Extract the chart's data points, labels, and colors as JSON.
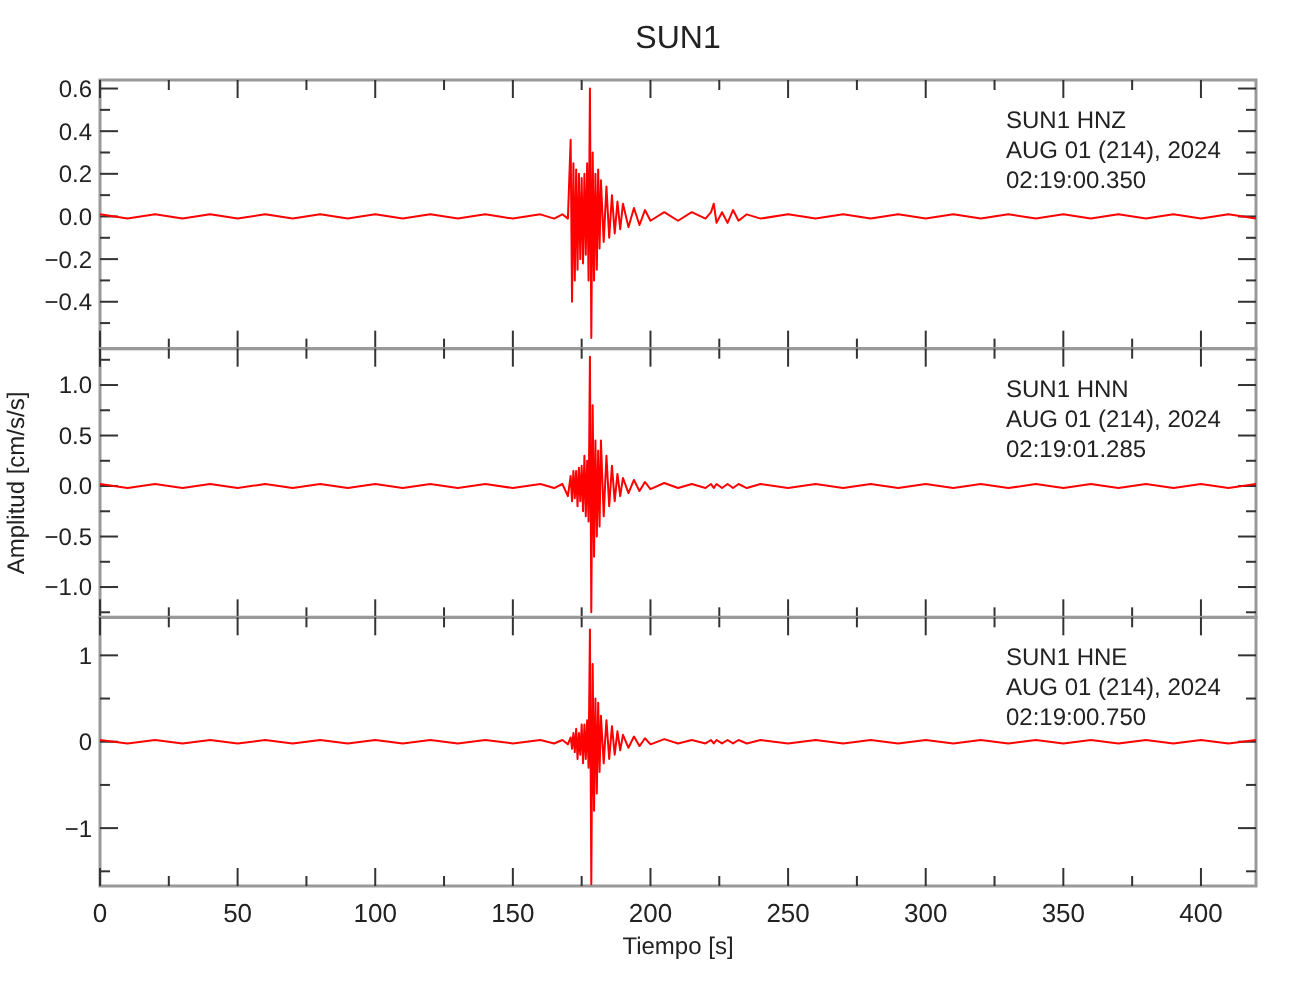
{
  "chart_data": [
    {
      "type": "line",
      "title": "SUN1",
      "tick_labels": "y",
      "annotations": [
        "SUN1   HNZ",
        "AUG 01 (214), 2024",
        "02:19:00.350"
      ],
      "x": [
        0,
        10,
        20,
        30,
        40,
        50,
        60,
        70,
        80,
        90,
        100,
        110,
        120,
        130,
        140,
        150,
        160,
        165,
        168,
        170,
        171,
        171.5,
        172,
        172.5,
        173,
        173.5,
        174,
        174.5,
        175,
        175.5,
        176,
        176.5,
        177,
        177.5,
        178,
        178.5,
        179,
        179.5,
        180,
        180.5,
        181,
        181.5,
        182,
        183,
        184,
        185,
        186,
        187,
        188,
        189,
        190,
        192,
        194,
        196,
        198,
        200,
        205,
        210,
        215,
        220,
        222,
        223,
        224,
        226,
        228,
        230,
        232,
        235,
        240,
        250,
        260,
        270,
        280,
        290,
        300,
        310,
        320,
        330,
        340,
        350,
        360,
        370,
        380,
        390,
        400,
        410,
        420
      ],
      "xlim": [
        0,
        420
      ],
      "xticks": [
        0,
        {
          "value": 25,
          "label": null
        },
        50,
        {
          "value": 75,
          "label": null
        },
        100,
        {
          "value": 125,
          "label": null
        },
        150,
        {
          "value": 175,
          "label": null
        },
        200,
        {
          "value": 225,
          "label": null
        },
        250,
        {
          "value": 275,
          "label": null
        },
        300,
        {
          "value": 325,
          "label": null
        },
        350,
        {
          "value": 375,
          "label": null
        },
        400
      ],
      "ylim": [
        -0.62,
        0.64
      ],
      "yticks": [
        {
          "value": -0.5,
          "label": null
        },
        {
          "value": -0.4,
          "label": "−0.4"
        },
        {
          "value": -0.3,
          "label": null
        },
        {
          "value": -0.2,
          "label": "−0.2"
        },
        {
          "value": -0.1,
          "label": null
        },
        {
          "value": 0,
          "label": "0.0"
        },
        {
          "value": 0.1,
          "label": null
        },
        {
          "value": 0.2,
          "label": "0.2"
        },
        {
          "value": 0.3,
          "label": null
        },
        {
          "value": 0.4,
          "label": "0.4"
        },
        {
          "value": 0.5,
          "label": null
        },
        {
          "value": 0.6,
          "label": "0.6"
        }
      ],
      "series": [
        {
          "color": "#ff0000",
          "values": [
            0.01,
            -0.01,
            0.01,
            -0.01,
            0.01,
            -0.01,
            0.01,
            -0.01,
            0.01,
            -0.01,
            0.01,
            -0.01,
            0.01,
            -0.01,
            0.01,
            -0.01,
            0.01,
            -0.01,
            0.01,
            -0.01,
            0.36,
            -0.4,
            0.25,
            -0.3,
            0.22,
            -0.25,
            0.2,
            -0.2,
            0.18,
            -0.22,
            0.2,
            -0.18,
            0.25,
            -0.3,
            0.6,
            -0.57,
            0.3,
            -0.3,
            0.2,
            -0.25,
            0.22,
            -0.15,
            0.17,
            -0.12,
            0.14,
            -0.1,
            0.1,
            -0.08,
            0.07,
            -0.06,
            0.06,
            -0.05,
            0.04,
            -0.04,
            0.03,
            -0.02,
            0.02,
            -0.02,
            0.02,
            -0.01,
            0.02,
            0.06,
            -0.03,
            0.02,
            -0.03,
            0.03,
            -0.02,
            0.01,
            -0.01,
            0.01,
            -0.01,
            0.01,
            -0.01,
            0.01,
            -0.01,
            0.01,
            -0.01,
            0.01,
            -0.01,
            0.01,
            -0.01,
            0.01,
            -0.01,
            0.01,
            -0.01,
            0.01,
            -0.01
          ]
        }
      ]
    },
    {
      "type": "line",
      "ylabel": "Amplitud [cm/s/s]",
      "tick_labels": "y",
      "annotations": [
        "SUN1   HNN",
        "AUG 01 (214), 2024",
        "02:19:01.285"
      ],
      "x": [
        0,
        10,
        20,
        30,
        40,
        50,
        60,
        70,
        80,
        90,
        100,
        110,
        120,
        130,
        140,
        150,
        160,
        165,
        168,
        170,
        171,
        171.5,
        172,
        172.5,
        173,
        173.5,
        174,
        174.5,
        175,
        175.5,
        176,
        176.5,
        177,
        177.5,
        178,
        178.5,
        179,
        179.5,
        180,
        180.5,
        181,
        181.5,
        182,
        183,
        184,
        185,
        186,
        187,
        188,
        189,
        190,
        192,
        194,
        196,
        198,
        200,
        205,
        210,
        215,
        220,
        222,
        223,
        224,
        226,
        228,
        230,
        232,
        235,
        240,
        250,
        260,
        270,
        280,
        290,
        300,
        310,
        320,
        330,
        340,
        350,
        360,
        370,
        380,
        390,
        400,
        410,
        420
      ],
      "xlim": [
        0,
        420
      ],
      "xticks": [
        0,
        {
          "value": 25,
          "label": null
        },
        50,
        {
          "value": 75,
          "label": null
        },
        100,
        {
          "value": 125,
          "label": null
        },
        150,
        {
          "value": 175,
          "label": null
        },
        200,
        {
          "value": 225,
          "label": null
        },
        250,
        {
          "value": 275,
          "label": null
        },
        300,
        {
          "value": 325,
          "label": null
        },
        350,
        {
          "value": 375,
          "label": null
        },
        400
      ],
      "ylim": [
        -1.3,
        1.36
      ],
      "yticks": [
        {
          "value": -1.25,
          "label": null
        },
        {
          "value": -1,
          "label": "−1.0"
        },
        {
          "value": -0.75,
          "label": null
        },
        {
          "value": -0.5,
          "label": "−0.5"
        },
        {
          "value": -0.25,
          "label": null
        },
        {
          "value": 0,
          "label": "0.0"
        },
        {
          "value": 0.25,
          "label": null
        },
        {
          "value": 0.5,
          "label": "0.5"
        },
        {
          "value": 0.75,
          "label": null
        },
        {
          "value": 1,
          "label": "1.0"
        },
        {
          "value": 1.25,
          "label": null
        }
      ],
      "series": [
        {
          "color": "#ff0000",
          "values": [
            0.02,
            -0.02,
            0.02,
            -0.02,
            0.02,
            -0.02,
            0.02,
            -0.02,
            0.02,
            -0.02,
            0.02,
            -0.02,
            0.02,
            -0.02,
            0.02,
            -0.02,
            0.02,
            -0.02,
            0.02,
            -0.1,
            0.1,
            -0.15,
            0.15,
            -0.12,
            0.15,
            -0.2,
            0.18,
            -0.15,
            0.2,
            -0.25,
            0.3,
            -0.3,
            0.25,
            -0.35,
            1.28,
            -1.25,
            0.8,
            -0.7,
            0.45,
            -0.5,
            0.35,
            -0.4,
            0.45,
            -0.3,
            0.3,
            -0.2,
            0.2,
            -0.15,
            0.12,
            -0.1,
            0.08,
            -0.07,
            0.06,
            -0.05,
            0.04,
            -0.03,
            0.03,
            -0.02,
            0.02,
            -0.02,
            0.02,
            -0.02,
            0.02,
            -0.02,
            0.02,
            -0.02,
            0.02,
            -0.02,
            0.02,
            -0.02,
            0.02,
            -0.02,
            0.02,
            -0.02,
            0.02,
            -0.02,
            0.02,
            -0.02,
            0.02,
            -0.02,
            0.02,
            -0.02,
            0.02,
            -0.02,
            0.02,
            -0.02,
            0.02
          ]
        }
      ]
    },
    {
      "type": "line",
      "xlabel": "Tiempo [s]",
      "annotations": [
        "SUN1   HNE",
        "AUG 01 (214), 2024",
        "02:19:00.750"
      ],
      "x": [
        0,
        10,
        20,
        30,
        40,
        50,
        60,
        70,
        80,
        90,
        100,
        110,
        120,
        130,
        140,
        150,
        160,
        165,
        168,
        170,
        171,
        171.5,
        172,
        172.5,
        173,
        173.5,
        174,
        174.5,
        175,
        175.5,
        176,
        176.5,
        177,
        177.5,
        178,
        178.5,
        179,
        179.5,
        180,
        180.5,
        181,
        181.5,
        182,
        183,
        184,
        185,
        186,
        187,
        188,
        189,
        190,
        192,
        194,
        196,
        198,
        200,
        205,
        210,
        215,
        220,
        222,
        223,
        224,
        226,
        228,
        230,
        232,
        235,
        240,
        250,
        260,
        270,
        280,
        290,
        300,
        310,
        320,
        330,
        340,
        350,
        360,
        370,
        380,
        390,
        400,
        410,
        420
      ],
      "xlim": [
        0,
        420
      ],
      "xticks": [
        0,
        {
          "value": 25,
          "label": null
        },
        50,
        {
          "value": 75,
          "label": null
        },
        100,
        {
          "value": 125,
          "label": null
        },
        150,
        {
          "value": 175,
          "label": null
        },
        200,
        {
          "value": 225,
          "label": null
        },
        250,
        {
          "value": 275,
          "label": null
        },
        300,
        {
          "value": 325,
          "label": null
        },
        350,
        {
          "value": 375,
          "label": null
        },
        400
      ],
      "ylim": [
        -1.67,
        1.44
      ],
      "yticks": [
        {
          "value": -1.5,
          "label": null
        },
        {
          "value": -1,
          "label": "−1"
        },
        {
          "value": -0.5,
          "label": null
        },
        0,
        {
          "value": 0.5,
          "label": null
        },
        1
      ],
      "series": [
        {
          "color": "#ff0000",
          "values": [
            0.02,
            -0.02,
            0.02,
            -0.02,
            0.02,
            -0.02,
            0.02,
            -0.02,
            0.02,
            -0.02,
            0.02,
            -0.02,
            0.02,
            -0.02,
            0.02,
            -0.02,
            0.02,
            -0.02,
            0.02,
            -0.03,
            0.05,
            -0.08,
            0.1,
            -0.12,
            0.15,
            -0.2,
            0.1,
            -0.15,
            0.2,
            -0.25,
            0.2,
            -0.2,
            0.25,
            -0.3,
            1.3,
            -1.65,
            0.9,
            -0.8,
            0.5,
            -0.6,
            0.45,
            -0.35,
            0.3,
            -0.25,
            0.25,
            -0.2,
            0.18,
            -0.15,
            0.12,
            -0.1,
            0.08,
            -0.07,
            0.06,
            -0.05,
            0.04,
            -0.03,
            0.03,
            -0.02,
            0.02,
            -0.02,
            0.02,
            -0.02,
            0.02,
            -0.02,
            0.02,
            -0.02,
            0.02,
            -0.02,
            0.02,
            -0.02,
            0.02,
            -0.02,
            0.02,
            -0.02,
            0.02,
            -0.02,
            0.02,
            -0.02,
            0.02,
            -0.02,
            0.02,
            -0.02,
            0.02,
            -0.02,
            0.02,
            -0.02,
            0.02
          ]
        }
      ]
    }
  ]
}
